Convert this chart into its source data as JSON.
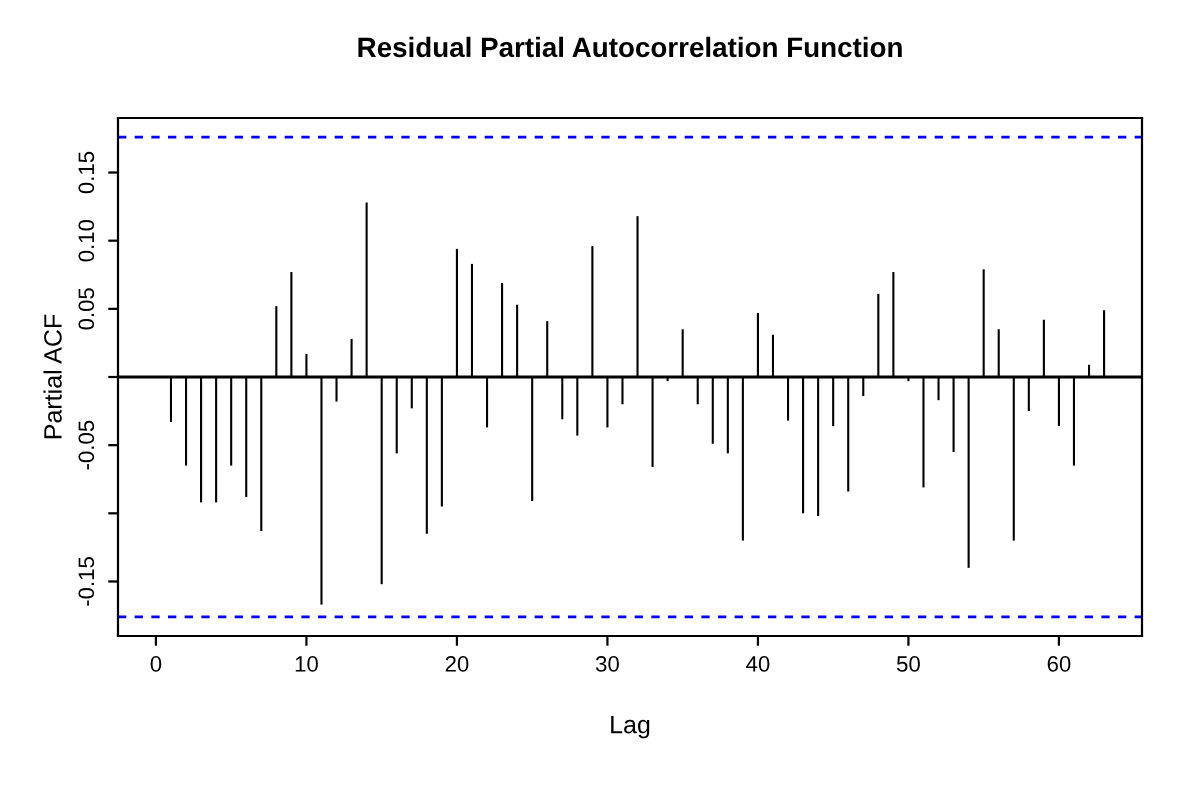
{
  "chart_data": {
    "type": "bar",
    "title": "Residual Partial Autocorrelation Function",
    "xlabel": "Lag",
    "ylabel": "Partial ACF",
    "x": [
      1,
      2,
      3,
      4,
      5,
      6,
      7,
      8,
      9,
      10,
      11,
      12,
      13,
      14,
      15,
      16,
      17,
      18,
      19,
      20,
      21,
      22,
      23,
      24,
      25,
      26,
      27,
      28,
      29,
      30,
      31,
      32,
      33,
      34,
      35,
      36,
      37,
      38,
      39,
      40,
      41,
      42,
      43,
      44,
      45,
      46,
      47,
      48,
      49,
      50,
      51,
      52,
      53,
      54,
      55,
      56,
      57,
      58,
      59,
      60,
      61,
      62,
      63
    ],
    "values": [
      -0.033,
      -0.065,
      -0.092,
      -0.092,
      -0.065,
      -0.088,
      -0.113,
      0.052,
      0.077,
      0.017,
      -0.167,
      -0.018,
      0.028,
      0.128,
      -0.152,
      -0.056,
      -0.023,
      -0.115,
      -0.095,
      0.094,
      0.083,
      -0.037,
      0.069,
      0.053,
      -0.091,
      0.041,
      -0.031,
      -0.043,
      0.096,
      -0.037,
      -0.02,
      0.118,
      -0.066,
      -0.003,
      0.035,
      -0.02,
      -0.049,
      -0.056,
      -0.12,
      0.047,
      0.031,
      -0.032,
      -0.1,
      -0.102,
      -0.036,
      -0.084,
      -0.014,
      0.061,
      0.077,
      -0.003,
      -0.081,
      -0.017,
      -0.055,
      -0.14,
      0.079,
      0.035,
      -0.12,
      -0.025,
      0.042,
      -0.036,
      -0.065,
      0.009,
      0.049
    ],
    "color": "#000000",
    "xlim": [
      -2.52,
      65.52
    ],
    "ylim": [
      -0.19,
      0.19
    ],
    "xticks": [
      0,
      10,
      20,
      30,
      40,
      50,
      60
    ],
    "yticks": [
      {
        "value": -0.15,
        "label": "-0.15"
      },
      {
        "value": -0.1,
        "label": null
      },
      {
        "value": -0.05,
        "label": "-0.05"
      },
      {
        "value": 0,
        "label": null
      },
      {
        "value": 0.05,
        "label": "0.05"
      },
      {
        "value": 0.1,
        "label": "0.10"
      },
      {
        "value": 0.15,
        "label": "0.15"
      }
    ],
    "ref_lines": [
      {
        "axis": "y",
        "value": 0,
        "color": "#000000",
        "line_style": "solid"
      },
      {
        "axis": "y",
        "value": 0.176,
        "color": "#0000ff",
        "line_style": "dashed"
      },
      {
        "axis": "y",
        "value": -0.176,
        "color": "#0000ff",
        "line_style": "dashed"
      }
    ],
    "grid": false,
    "legend": false
  }
}
